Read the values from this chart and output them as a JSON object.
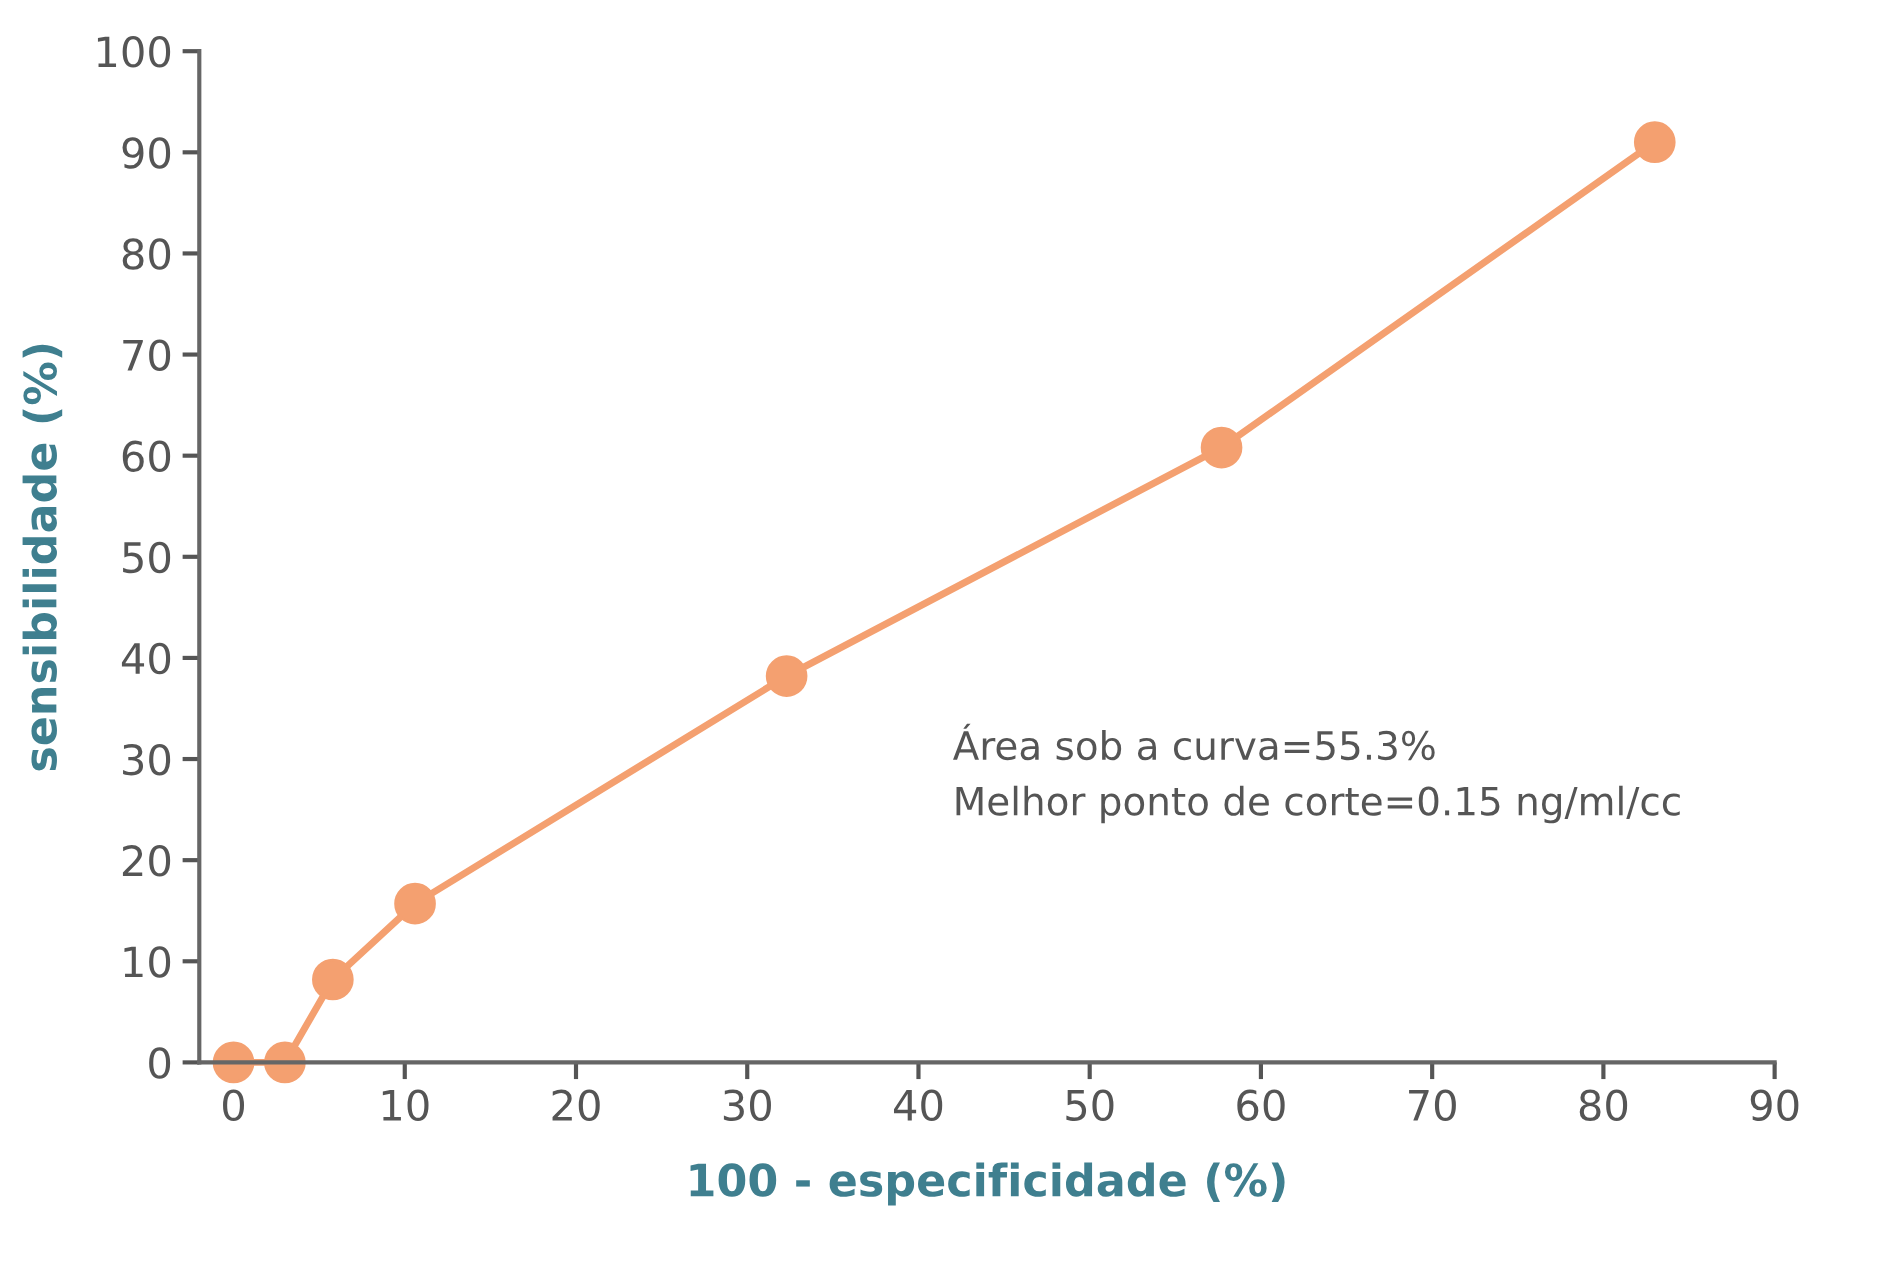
{
  "chart_data": {
    "type": "line",
    "xlabel": "100 - especificidade (%)",
    "ylabel": "sensibilidade (%)",
    "x": [
      0,
      3,
      5.8,
      10.6,
      32.3,
      57.7,
      83
    ],
    "series": [
      {
        "color": "#f4a070",
        "values": [
          0,
          0,
          8.2,
          15.7,
          38.2,
          60.8,
          91
        ]
      }
    ],
    "xlim": [
      -2,
      90
    ],
    "ylim": [
      0,
      100
    ],
    "xticks": [
      0,
      10,
      20,
      30,
      40,
      50,
      60,
      70,
      80,
      90
    ],
    "yticks": [
      0,
      10,
      20,
      30,
      40,
      50,
      60,
      70,
      80,
      90,
      100
    ],
    "grid": false,
    "legend": false,
    "marker": "circle",
    "line_style": "solid",
    "annotations": [
      "Área sob a curva=55.3%",
      "Melhor ponto de corte=0.15 ng/ml/cc"
    ]
  }
}
